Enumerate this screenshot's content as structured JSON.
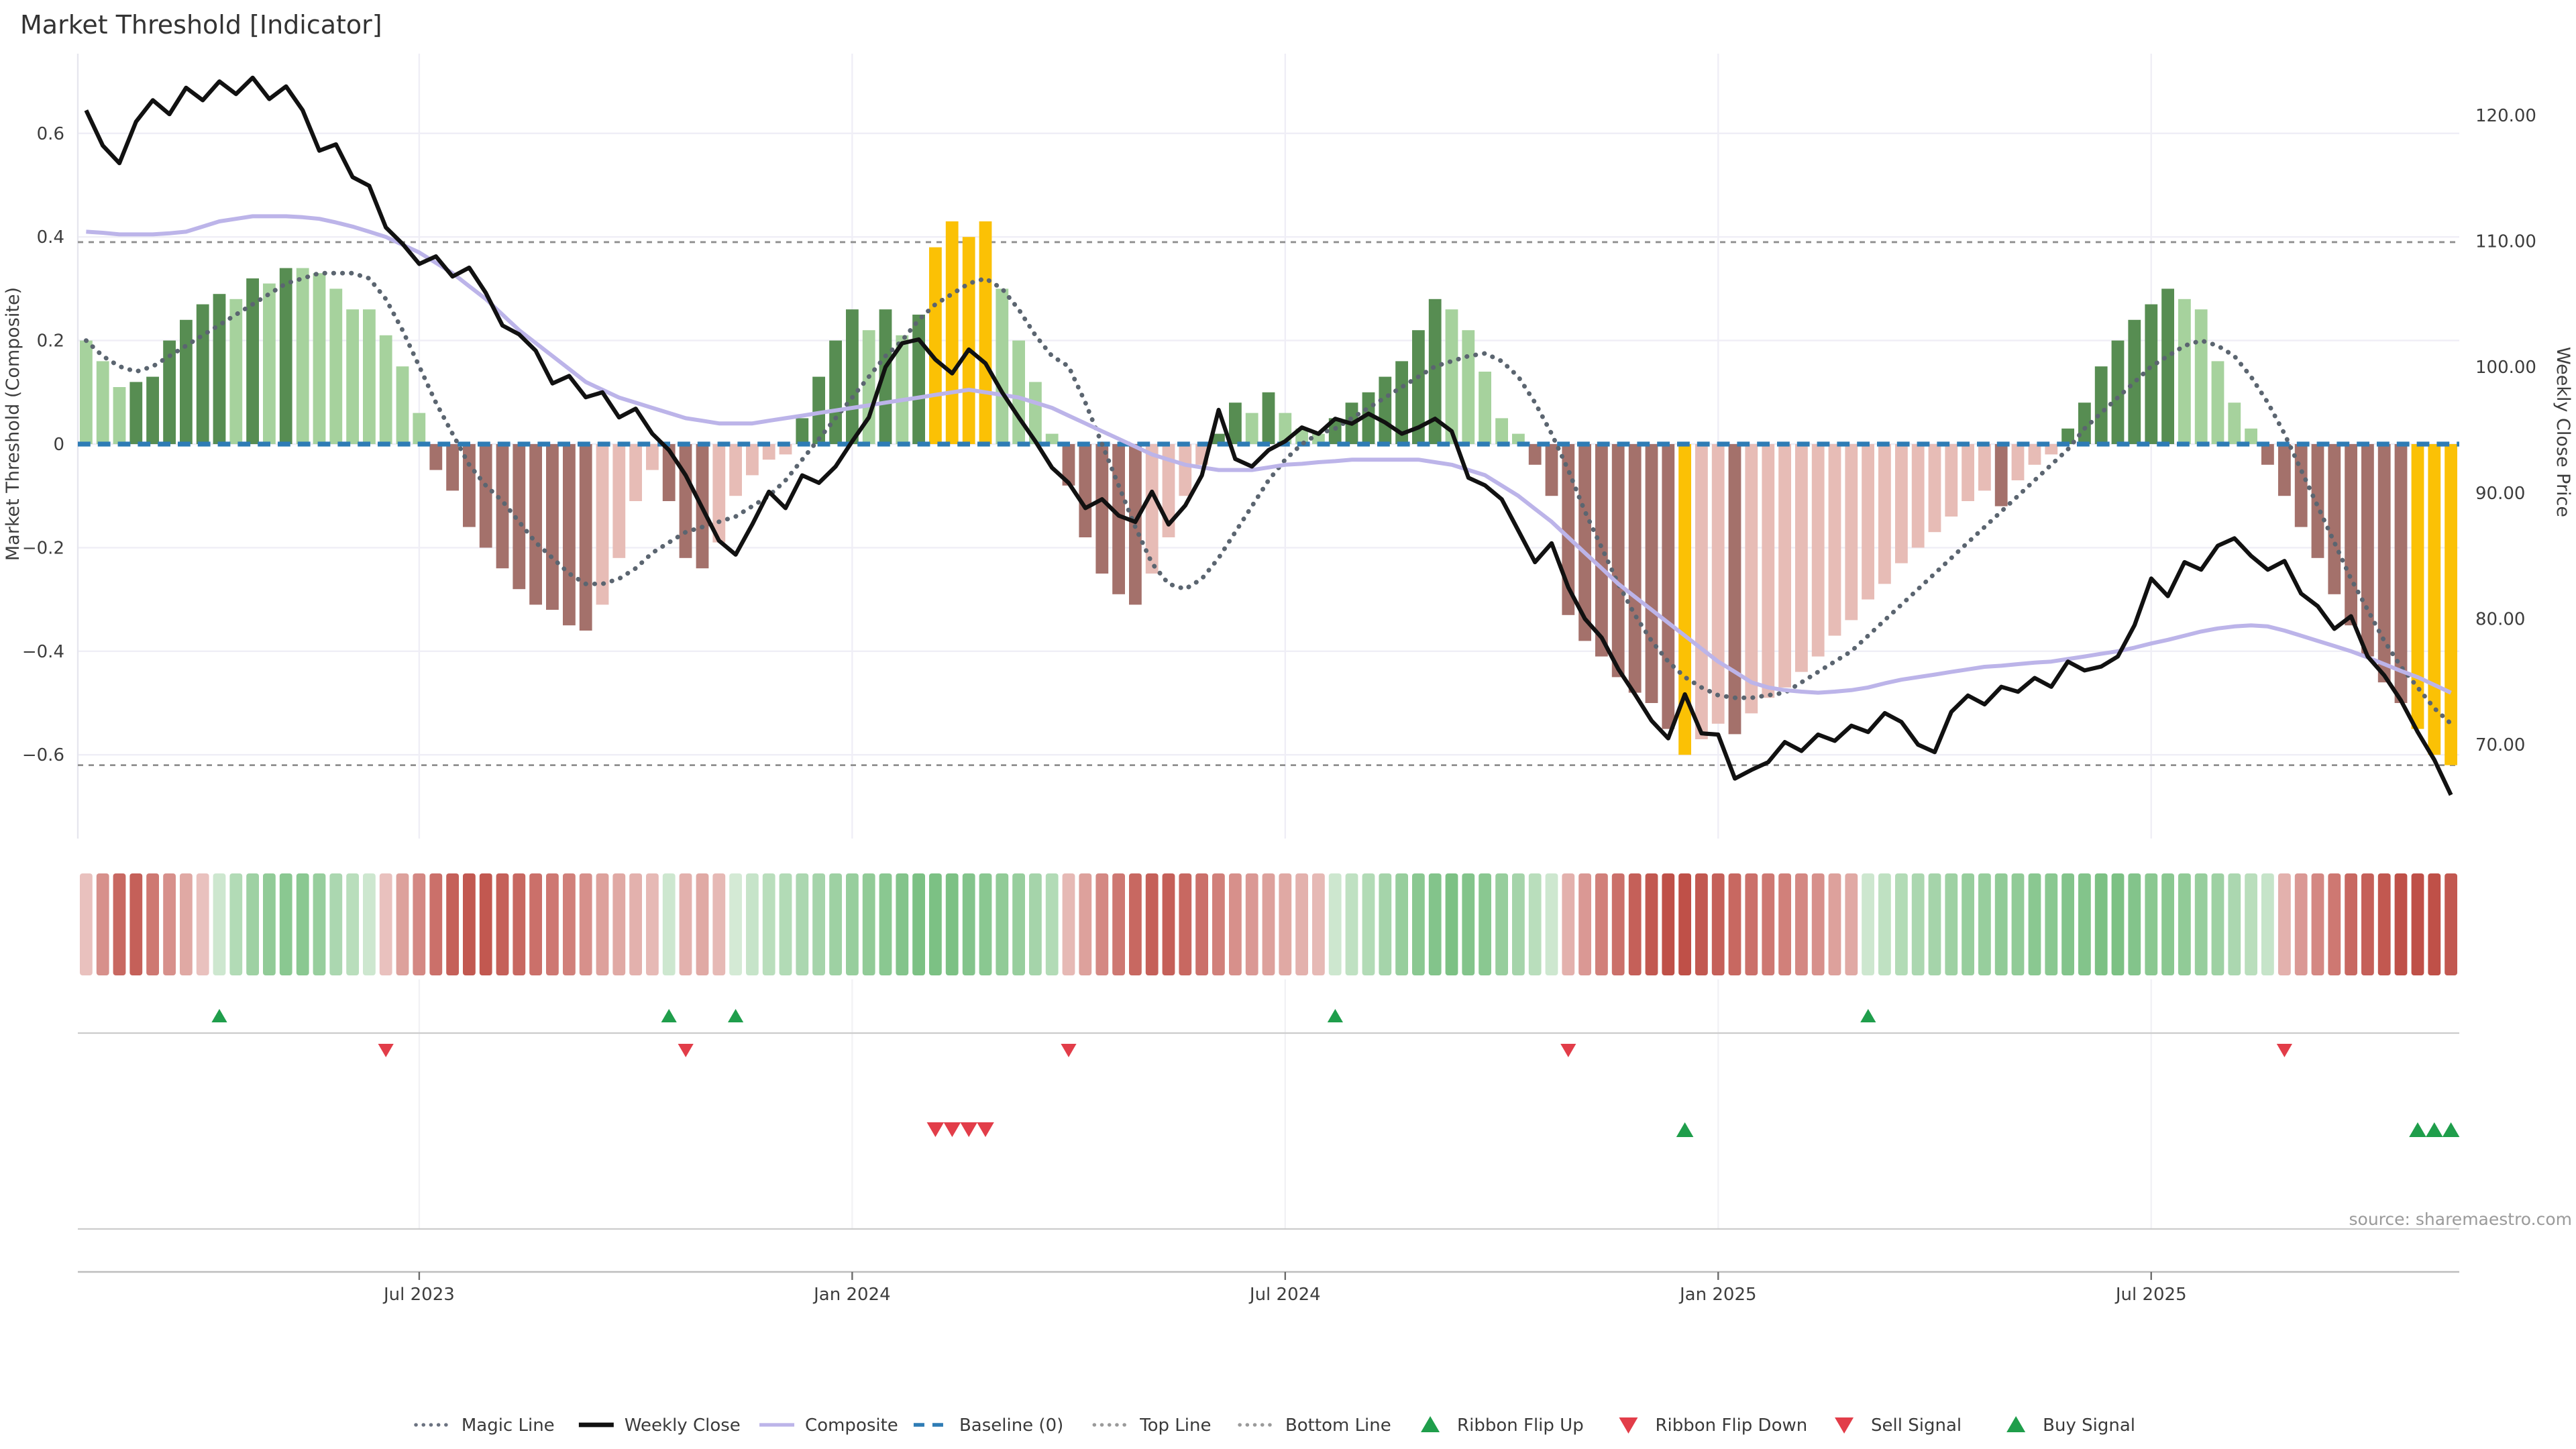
{
  "title": "Market Threshold [Indicator]",
  "source_note": "source: sharemaestro.com",
  "axes": {
    "left_label": "Market Threshold (Composite)",
    "right_label": "Weekly Close Price",
    "left_ticks": [
      "0.6",
      "0.4",
      "0.2",
      "0",
      "−0.2",
      "−0.4",
      "−0.6"
    ],
    "left_tick_values": [
      0.6,
      0.4,
      0.2,
      0,
      -0.2,
      -0.4,
      -0.6
    ],
    "right_ticks": [
      "120.00",
      "110.00",
      "100.00",
      "90.00",
      "80.00",
      "70.00"
    ],
    "right_tick_values": [
      120,
      110,
      100,
      90,
      80,
      70
    ],
    "x_tick_weeks": [
      20,
      46,
      72,
      98,
      124
    ],
    "x_tick_labels": [
      "Jul 2023",
      "Jan 2024",
      "Jul 2024",
      "Jan 2025",
      "Jul 2025"
    ]
  },
  "chart_data": {
    "type": "bar",
    "subtype": "combo-indicator",
    "weeks": 143,
    "title": "Market Threshold [Indicator]",
    "xlabel": "",
    "ylabel_left": "Market Threshold (Composite)",
    "ylabel_right": "Weekly Close Price",
    "ylim_left": [
      -0.76,
      0.76
    ],
    "ylim_right": [
      62.5,
      125.0
    ],
    "grid": true,
    "legend_position": "bottom-center",
    "thresholds": {
      "top_line": 0.39,
      "bottom_line": -0.62,
      "baseline": 0
    },
    "composite_bars": [
      0.2,
      0.16,
      0.11,
      0.12,
      0.13,
      0.2,
      0.24,
      0.27,
      0.29,
      0.28,
      0.32,
      0.31,
      0.34,
      0.34,
      0.33,
      0.3,
      0.26,
      0.26,
      0.21,
      0.15,
      0.06,
      -0.05,
      -0.09,
      -0.16,
      -0.2,
      -0.24,
      -0.28,
      -0.31,
      -0.32,
      -0.35,
      -0.36,
      -0.31,
      -0.22,
      -0.11,
      -0.05,
      -0.11,
      -0.22,
      -0.24,
      -0.19,
      -0.1,
      -0.06,
      -0.03,
      -0.02,
      0.05,
      0.13,
      0.2,
      0.26,
      0.22,
      0.26,
      0.21,
      0.25,
      0.38,
      0.43,
      0.4,
      0.43,
      0.3,
      0.2,
      0.12,
      0.02,
      -0.08,
      -0.18,
      -0.25,
      -0.29,
      -0.31,
      -0.25,
      -0.18,
      -0.1,
      -0.04,
      0.02,
      0.08,
      0.06,
      0.1,
      0.06,
      0.03,
      0.02,
      0.05,
      0.08,
      0.1,
      0.13,
      0.16,
      0.22,
      0.28,
      0.26,
      0.22,
      0.14,
      0.05,
      0.02,
      -0.04,
      -0.1,
      -0.33,
      -0.38,
      -0.41,
      -0.45,
      -0.48,
      -0.5,
      -0.55,
      -0.6,
      -0.57,
      -0.54,
      -0.56,
      -0.52,
      -0.49,
      -0.47,
      -0.44,
      -0.41,
      -0.37,
      -0.34,
      -0.3,
      -0.27,
      -0.23,
      -0.2,
      -0.17,
      -0.14,
      -0.11,
      -0.09,
      -0.12,
      -0.07,
      -0.04,
      -0.02,
      0.03,
      0.08,
      0.15,
      0.2,
      0.24,
      0.27,
      0.3,
      0.28,
      0.26,
      0.16,
      0.08,
      0.03,
      -0.04,
      -0.1,
      -0.16,
      -0.22,
      -0.29,
      -0.35,
      -0.41,
      -0.46,
      -0.5,
      -0.55,
      -0.6,
      -0.62
    ],
    "weekly_close": [
      120.4,
      117.6,
      116.2,
      119.5,
      121.2,
      120.1,
      122.2,
      121.2,
      122.7,
      121.7,
      123.0,
      121.3,
      122.3,
      120.4,
      117.2,
      117.7,
      115.1,
      114.4,
      111.1,
      109.8,
      108.2,
      108.8,
      107.2,
      107.9,
      105.9,
      103.3,
      102.6,
      101.3,
      98.7,
      99.3,
      97.6,
      98.0,
      96.0,
      96.7,
      94.7,
      93.4,
      91.4,
      88.8,
      86.2,
      85.1,
      87.5,
      90.1,
      88.8,
      91.4,
      90.8,
      92.1,
      94.1,
      96.0,
      100.0,
      101.9,
      102.2,
      100.6,
      99.5,
      101.4,
      100.3,
      98.0,
      96.0,
      94.1,
      92.0,
      90.8,
      88.8,
      89.5,
      88.2,
      87.7,
      90.1,
      87.5,
      89.0,
      91.4,
      96.6,
      92.7,
      92.1,
      93.4,
      94.1,
      95.2,
      94.7,
      95.9,
      95.5,
      96.3,
      95.6,
      94.7,
      95.2,
      95.9,
      94.9,
      91.2,
      90.6,
      89.5,
      87.0,
      84.5,
      86.0,
      82.5,
      80.0,
      78.5,
      76.0,
      74.0,
      71.9,
      70.5,
      74.0,
      70.9,
      70.8,
      67.3,
      68.0,
      68.6,
      70.2,
      69.5,
      70.8,
      70.3,
      71.5,
      71.0,
      72.5,
      71.8,
      70.0,
      69.4,
      72.6,
      73.9,
      73.2,
      74.6,
      74.2,
      75.3,
      74.6,
      76.6,
      75.9,
      76.2,
      77.0,
      79.5,
      83.2,
      81.8,
      84.5,
      83.9,
      85.8,
      86.4,
      85.0,
      83.9,
      84.6,
      82.0,
      81.0,
      79.2,
      80.2,
      77.0,
      75.5,
      73.5,
      71.0,
      68.8,
      66.0
    ],
    "composite_line": [
      0.41,
      0.408,
      0.405,
      0.405,
      0.405,
      0.407,
      0.41,
      0.42,
      0.43,
      0.435,
      0.44,
      0.44,
      0.44,
      0.438,
      0.435,
      0.428,
      0.42,
      0.41,
      0.4,
      0.385,
      0.37,
      0.35,
      0.33,
      0.305,
      0.28,
      0.25,
      0.22,
      0.195,
      0.17,
      0.145,
      0.12,
      0.105,
      0.09,
      0.08,
      0.07,
      0.06,
      0.05,
      0.045,
      0.04,
      0.04,
      0.04,
      0.045,
      0.05,
      0.055,
      0.06,
      0.065,
      0.07,
      0.075,
      0.08,
      0.085,
      0.09,
      0.095,
      0.1,
      0.105,
      0.1,
      0.095,
      0.09,
      0.08,
      0.07,
      0.055,
      0.04,
      0.025,
      0.01,
      -0.005,
      -0.02,
      -0.03,
      -0.04,
      -0.045,
      -0.05,
      -0.05,
      -0.05,
      -0.045,
      -0.04,
      -0.038,
      -0.035,
      -0.033,
      -0.03,
      -0.03,
      -0.03,
      -0.03,
      -0.03,
      -0.035,
      -0.04,
      -0.05,
      -0.06,
      -0.08,
      -0.1,
      -0.125,
      -0.15,
      -0.18,
      -0.21,
      -0.24,
      -0.27,
      -0.295,
      -0.32,
      -0.345,
      -0.37,
      -0.395,
      -0.42,
      -0.44,
      -0.46,
      -0.47,
      -0.475,
      -0.478,
      -0.48,
      -0.478,
      -0.475,
      -0.47,
      -0.462,
      -0.455,
      -0.45,
      -0.445,
      -0.44,
      -0.435,
      -0.43,
      -0.428,
      -0.425,
      -0.422,
      -0.42,
      -0.415,
      -0.41,
      -0.405,
      -0.4,
      -0.393,
      -0.385,
      -0.378,
      -0.37,
      -0.362,
      -0.356,
      -0.352,
      -0.35,
      -0.352,
      -0.36,
      -0.37,
      -0.38,
      -0.39,
      -0.4,
      -0.412,
      -0.425,
      -0.438,
      -0.45,
      -0.465,
      -0.48
    ],
    "magic_line": [
      0.2,
      0.17,
      0.15,
      0.14,
      0.15,
      0.17,
      0.19,
      0.21,
      0.23,
      0.25,
      0.27,
      0.29,
      0.31,
      0.32,
      0.33,
      0.33,
      0.33,
      0.32,
      0.28,
      0.22,
      0.15,
      0.08,
      0.02,
      -0.04,
      -0.08,
      -0.11,
      -0.15,
      -0.19,
      -0.22,
      -0.25,
      -0.27,
      -0.27,
      -0.26,
      -0.24,
      -0.21,
      -0.19,
      -0.17,
      -0.16,
      -0.15,
      -0.14,
      -0.12,
      -0.1,
      -0.07,
      -0.03,
      0.01,
      0.05,
      0.09,
      0.13,
      0.17,
      0.2,
      0.24,
      0.27,
      0.29,
      0.31,
      0.32,
      0.3,
      0.26,
      0.21,
      0.17,
      0.15,
      0.08,
      0.0,
      -0.08,
      -0.16,
      -0.23,
      -0.27,
      -0.28,
      -0.26,
      -0.22,
      -0.17,
      -0.12,
      -0.07,
      -0.03,
      0.0,
      0.02,
      0.03,
      0.05,
      0.07,
      0.09,
      0.11,
      0.13,
      0.15,
      0.16,
      0.17,
      0.175,
      0.16,
      0.13,
      0.08,
      0.02,
      -0.05,
      -0.13,
      -0.2,
      -0.27,
      -0.33,
      -0.38,
      -0.42,
      -0.45,
      -0.47,
      -0.485,
      -0.49,
      -0.49,
      -0.485,
      -0.48,
      -0.46,
      -0.44,
      -0.42,
      -0.4,
      -0.37,
      -0.34,
      -0.31,
      -0.28,
      -0.25,
      -0.22,
      -0.19,
      -0.16,
      -0.13,
      -0.1,
      -0.07,
      -0.04,
      -0.01,
      0.03,
      0.06,
      0.09,
      0.12,
      0.15,
      0.17,
      0.19,
      0.2,
      0.19,
      0.17,
      0.13,
      0.08,
      0.02,
      -0.05,
      -0.12,
      -0.19,
      -0.26,
      -0.32,
      -0.38,
      -0.43,
      -0.47,
      -0.51,
      -0.54
    ],
    "ribbon": [
      -0.3,
      -0.6,
      -0.85,
      -0.9,
      -0.75,
      -0.6,
      -0.45,
      -0.3,
      0.3,
      0.5,
      0.65,
      0.75,
      0.8,
      0.8,
      0.7,
      0.55,
      0.45,
      0.3,
      -0.3,
      -0.5,
      -0.65,
      -0.8,
      -0.9,
      -0.95,
      -0.95,
      -0.9,
      -0.85,
      -0.8,
      -0.75,
      -0.7,
      -0.6,
      -0.5,
      -0.45,
      -0.4,
      -0.35,
      0.3,
      -0.4,
      -0.45,
      -0.35,
      0.25,
      0.35,
      0.45,
      0.5,
      0.55,
      0.6,
      0.65,
      0.7,
      0.75,
      0.8,
      0.85,
      0.9,
      0.9,
      0.9,
      0.85,
      0.8,
      0.75,
      0.7,
      0.6,
      0.5,
      -0.35,
      -0.5,
      -0.65,
      -0.75,
      -0.85,
      -0.9,
      -0.9,
      -0.85,
      -0.8,
      -0.7,
      -0.6,
      -0.55,
      -0.5,
      -0.45,
      -0.4,
      -0.35,
      0.3,
      0.4,
      0.5,
      0.6,
      0.7,
      0.8,
      0.85,
      0.9,
      0.85,
      0.8,
      0.7,
      0.6,
      0.45,
      0.3,
      -0.4,
      -0.55,
      -0.7,
      -0.8,
      -0.9,
      -0.95,
      -1.0,
      -1.0,
      -0.95,
      -0.9,
      -0.85,
      -0.8,
      -0.75,
      -0.7,
      -0.65,
      -0.6,
      -0.5,
      -0.45,
      0.3,
      0.4,
      0.5,
      0.55,
      0.6,
      0.65,
      0.7,
      0.7,
      0.75,
      0.75,
      0.8,
      0.8,
      0.85,
      0.85,
      0.9,
      0.9,
      0.85,
      0.8,
      0.8,
      0.75,
      0.7,
      0.65,
      0.55,
      0.45,
      0.35,
      -0.4,
      -0.55,
      -0.65,
      -0.75,
      -0.85,
      -0.9,
      -0.95,
      -1.0,
      -1.0,
      -1.0,
      -0.95
    ],
    "signals": {
      "ribbon_flip_up_weeks": [
        8,
        35,
        39,
        75,
        107
      ],
      "ribbon_flip_down_weeks": [
        18,
        36,
        59,
        89,
        132
      ],
      "sell_signal_weeks": [
        51,
        52,
        53,
        54
      ],
      "buy_signal_weeks": [
        96,
        140,
        141,
        142
      ],
      "gold_bar_weeks": [
        51,
        52,
        53,
        54,
        96,
        140,
        141,
        142
      ]
    }
  },
  "legend": {
    "items": [
      {
        "label": "Magic Line",
        "swatch": "dotted",
        "color": "#6b7280"
      },
      {
        "label": "Weekly Close",
        "swatch": "line-thick",
        "color": "#111111"
      },
      {
        "label": "Composite",
        "swatch": "line",
        "color": "#bcb4e9"
      },
      {
        "label": "Baseline (0)",
        "swatch": "dashed",
        "color": "#2e7cb5"
      },
      {
        "label": "Top Line",
        "swatch": "dotted",
        "color": "#9a9a9a"
      },
      {
        "label": "Bottom Line",
        "swatch": "dotted",
        "color": "#9a9a9a"
      },
      {
        "label": "Ribbon Flip Up",
        "swatch": "tri-up",
        "color": "#1f9e4b"
      },
      {
        "label": "Ribbon Flip Down",
        "swatch": "tri-down",
        "color": "#e23d49"
      },
      {
        "label": "Sell Signal",
        "swatch": "tri-down",
        "color": "#e23d49"
      },
      {
        "label": "Buy Signal",
        "swatch": "tri-up",
        "color": "#1f9e4b"
      }
    ]
  },
  "colors": {
    "bar_green_dark": "#578d52",
    "bar_green_light": "#a6d29d",
    "bar_red_dark": "#a4716b",
    "bar_red_light": "#e7bcb6",
    "bar_gold": "#fbc105",
    "weekly_close": "#111111",
    "composite_line": "#bcb4e9",
    "magic_line": "#5b6570",
    "baseline": "#2e7cb5",
    "threshold_line": "#8f8f8f",
    "ribbon_green_max": "#6fbb78",
    "ribbon_red_max": "#bf5048",
    "flip_up": "#1f9e4b",
    "flip_down": "#e23d49",
    "grid": "#efeef6",
    "panel_line": "#cccccc",
    "axis_line": "#bdbdbd",
    "tick_text": "#3d3d3d",
    "title_text": "#333333",
    "source_text": "#9a9a9a"
  }
}
